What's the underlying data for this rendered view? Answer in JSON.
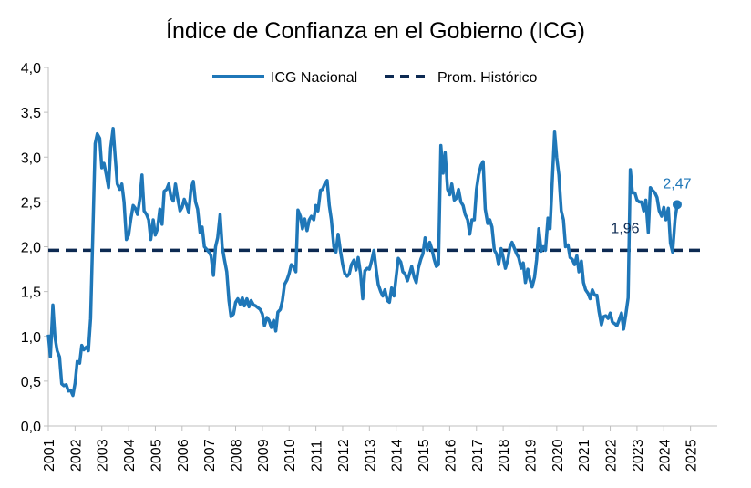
{
  "chart_data": {
    "type": "line",
    "title": "Índice de Confianza en el Gobierno (ICG)",
    "xlabel": "",
    "ylabel": "",
    "ylim": [
      0,
      4
    ],
    "yticks": [
      "0,0",
      "0,5",
      "1,0",
      "1,5",
      "2,0",
      "2,5",
      "3,0",
      "3,5",
      "4,0"
    ],
    "xlim": [
      2001,
      2026
    ],
    "xticks": [
      "2001",
      "2002",
      "2003",
      "2004",
      "2005",
      "2006",
      "2007",
      "2008",
      "2009",
      "2010",
      "2011",
      "2012",
      "2013",
      "2014",
      "2015",
      "2016",
      "2017",
      "2018",
      "2019",
      "2020",
      "2021",
      "2022",
      "2023",
      "2024",
      "2025"
    ],
    "grid": false,
    "legend_position": "top",
    "colors": {
      "icg": "#1f77b8",
      "avg": "#0d2a52",
      "label_last": "#1f77b8",
      "label_avg": "#0d2a52"
    },
    "series": [
      {
        "name": "ICG Nacional",
        "style": "solid",
        "points": [
          [
            2001.0,
            1.02
          ],
          [
            2001.08,
            0.77
          ],
          [
            2001.17,
            1.35
          ],
          [
            2001.25,
            0.99
          ],
          [
            2001.33,
            0.84
          ],
          [
            2001.42,
            0.77
          ],
          [
            2001.5,
            0.47
          ],
          [
            2001.58,
            0.45
          ],
          [
            2001.67,
            0.46
          ],
          [
            2001.75,
            0.39
          ],
          [
            2001.83,
            0.4
          ],
          [
            2001.92,
            0.34
          ],
          [
            2002.0,
            0.48
          ],
          [
            2002.08,
            0.72
          ],
          [
            2002.17,
            0.7
          ],
          [
            2002.25,
            0.9
          ],
          [
            2002.33,
            0.85
          ],
          [
            2002.42,
            0.88
          ],
          [
            2002.5,
            0.84
          ],
          [
            2002.58,
            1.2
          ],
          [
            2002.67,
            2.2
          ],
          [
            2002.75,
            3.15
          ],
          [
            2002.83,
            3.26
          ],
          [
            2002.92,
            3.21
          ],
          [
            2003.0,
            2.88
          ],
          [
            2003.08,
            2.93
          ],
          [
            2003.17,
            2.8
          ],
          [
            2003.25,
            2.66
          ],
          [
            2003.33,
            3.1
          ],
          [
            2003.42,
            3.32
          ],
          [
            2003.5,
            3.0
          ],
          [
            2003.58,
            2.7
          ],
          [
            2003.67,
            2.64
          ],
          [
            2003.75,
            2.7
          ],
          [
            2003.83,
            2.5
          ],
          [
            2003.92,
            2.08
          ],
          [
            2004.0,
            2.13
          ],
          [
            2004.08,
            2.3
          ],
          [
            2004.17,
            2.46
          ],
          [
            2004.25,
            2.43
          ],
          [
            2004.33,
            2.36
          ],
          [
            2004.42,
            2.53
          ],
          [
            2004.5,
            2.8
          ],
          [
            2004.58,
            2.4
          ],
          [
            2004.67,
            2.36
          ],
          [
            2004.75,
            2.3
          ],
          [
            2004.83,
            2.08
          ],
          [
            2004.92,
            2.3
          ],
          [
            2005.0,
            2.13
          ],
          [
            2005.08,
            2.2
          ],
          [
            2005.17,
            2.42
          ],
          [
            2005.25,
            2.25
          ],
          [
            2005.33,
            2.62
          ],
          [
            2005.42,
            2.64
          ],
          [
            2005.5,
            2.7
          ],
          [
            2005.58,
            2.56
          ],
          [
            2005.67,
            2.51
          ],
          [
            2005.75,
            2.7
          ],
          [
            2005.83,
            2.55
          ],
          [
            2005.92,
            2.4
          ],
          [
            2006.0,
            2.44
          ],
          [
            2006.08,
            2.53
          ],
          [
            2006.17,
            2.46
          ],
          [
            2006.25,
            2.38
          ],
          [
            2006.33,
            2.64
          ],
          [
            2006.42,
            2.73
          ],
          [
            2006.5,
            2.5
          ],
          [
            2006.58,
            2.42
          ],
          [
            2006.67,
            2.16
          ],
          [
            2006.75,
            2.22
          ],
          [
            2006.83,
            2.0
          ],
          [
            2006.92,
            1.97
          ],
          [
            2007.0,
            1.94
          ],
          [
            2007.08,
            1.9
          ],
          [
            2007.17,
            1.68
          ],
          [
            2007.25,
            2.0
          ],
          [
            2007.33,
            2.1
          ],
          [
            2007.42,
            2.36
          ],
          [
            2007.5,
            2.0
          ],
          [
            2007.58,
            1.86
          ],
          [
            2007.67,
            1.72
          ],
          [
            2007.75,
            1.4
          ],
          [
            2007.83,
            1.22
          ],
          [
            2007.92,
            1.25
          ],
          [
            2008.0,
            1.38
          ],
          [
            2008.08,
            1.42
          ],
          [
            2008.17,
            1.36
          ],
          [
            2008.25,
            1.43
          ],
          [
            2008.33,
            1.34
          ],
          [
            2008.42,
            1.42
          ],
          [
            2008.5,
            1.33
          ],
          [
            2008.58,
            1.4
          ],
          [
            2008.67,
            1.35
          ],
          [
            2008.75,
            1.34
          ],
          [
            2008.83,
            1.32
          ],
          [
            2008.92,
            1.3
          ],
          [
            2009.0,
            1.25
          ],
          [
            2009.08,
            1.12
          ],
          [
            2009.17,
            1.21
          ],
          [
            2009.25,
            1.18
          ],
          [
            2009.33,
            1.1
          ],
          [
            2009.42,
            1.18
          ],
          [
            2009.5,
            1.06
          ],
          [
            2009.58,
            1.27
          ],
          [
            2009.67,
            1.3
          ],
          [
            2009.75,
            1.4
          ],
          [
            2009.83,
            1.58
          ],
          [
            2009.92,
            1.63
          ],
          [
            2010.0,
            1.7
          ],
          [
            2010.08,
            1.8
          ],
          [
            2010.17,
            1.78
          ],
          [
            2010.25,
            1.72
          ],
          [
            2010.33,
            2.41
          ],
          [
            2010.42,
            2.34
          ],
          [
            2010.5,
            2.2
          ],
          [
            2010.58,
            2.31
          ],
          [
            2010.67,
            2.18
          ],
          [
            2010.75,
            2.3
          ],
          [
            2010.83,
            2.34
          ],
          [
            2010.92,
            2.3
          ],
          [
            2011.0,
            2.46
          ],
          [
            2011.08,
            2.4
          ],
          [
            2011.17,
            2.63
          ],
          [
            2011.25,
            2.64
          ],
          [
            2011.33,
            2.7
          ],
          [
            2011.42,
            2.74
          ],
          [
            2011.5,
            2.46
          ],
          [
            2011.58,
            2.3
          ],
          [
            2011.67,
            2.0
          ],
          [
            2011.75,
            1.94
          ],
          [
            2011.83,
            2.14
          ],
          [
            2011.92,
            1.95
          ],
          [
            2012.0,
            1.8
          ],
          [
            2012.08,
            1.7
          ],
          [
            2012.17,
            1.67
          ],
          [
            2012.25,
            1.7
          ],
          [
            2012.33,
            1.8
          ],
          [
            2012.42,
            1.85
          ],
          [
            2012.5,
            1.74
          ],
          [
            2012.58,
            1.88
          ],
          [
            2012.67,
            1.7
          ],
          [
            2012.75,
            1.42
          ],
          [
            2012.83,
            1.73
          ],
          [
            2012.92,
            1.76
          ],
          [
            2013.0,
            1.75
          ],
          [
            2013.08,
            1.84
          ],
          [
            2013.17,
            1.96
          ],
          [
            2013.25,
            1.75
          ],
          [
            2013.33,
            1.58
          ],
          [
            2013.42,
            1.5
          ],
          [
            2013.5,
            1.45
          ],
          [
            2013.58,
            1.52
          ],
          [
            2013.67,
            1.4
          ],
          [
            2013.75,
            1.38
          ],
          [
            2013.83,
            1.54
          ],
          [
            2013.92,
            1.45
          ],
          [
            2014.0,
            1.67
          ],
          [
            2014.08,
            1.87
          ],
          [
            2014.17,
            1.83
          ],
          [
            2014.25,
            1.72
          ],
          [
            2014.33,
            1.7
          ],
          [
            2014.42,
            1.62
          ],
          [
            2014.5,
            1.7
          ],
          [
            2014.58,
            1.78
          ],
          [
            2014.67,
            1.66
          ],
          [
            2014.75,
            1.6
          ],
          [
            2014.83,
            1.76
          ],
          [
            2014.92,
            1.86
          ],
          [
            2015.0,
            1.92
          ],
          [
            2015.08,
            2.1
          ],
          [
            2015.17,
            1.96
          ],
          [
            2015.25,
            2.05
          ],
          [
            2015.33,
            1.98
          ],
          [
            2015.42,
            1.86
          ],
          [
            2015.5,
            1.78
          ],
          [
            2015.58,
            1.8
          ],
          [
            2015.67,
            3.13
          ],
          [
            2015.75,
            2.82
          ],
          [
            2015.83,
            3.05
          ],
          [
            2015.92,
            2.64
          ],
          [
            2016.0,
            2.58
          ],
          [
            2016.08,
            2.7
          ],
          [
            2016.17,
            2.52
          ],
          [
            2016.25,
            2.54
          ],
          [
            2016.33,
            2.64
          ],
          [
            2016.42,
            2.5
          ],
          [
            2016.5,
            2.46
          ],
          [
            2016.58,
            2.36
          ],
          [
            2016.67,
            2.3
          ],
          [
            2016.75,
            2.14
          ],
          [
            2016.83,
            2.3
          ],
          [
            2016.92,
            2.3
          ],
          [
            2017.0,
            2.64
          ],
          [
            2017.08,
            2.8
          ],
          [
            2017.17,
            2.91
          ],
          [
            2017.25,
            2.95
          ],
          [
            2017.33,
            2.42
          ],
          [
            2017.42,
            2.26
          ],
          [
            2017.5,
            2.3
          ],
          [
            2017.58,
            2.22
          ],
          [
            2017.67,
            1.96
          ],
          [
            2017.75,
            1.92
          ],
          [
            2017.83,
            1.8
          ],
          [
            2017.92,
            1.98
          ],
          [
            2018.0,
            1.88
          ],
          [
            2018.08,
            1.76
          ],
          [
            2018.17,
            1.85
          ],
          [
            2018.25,
            2.0
          ],
          [
            2018.33,
            2.05
          ],
          [
            2018.42,
            1.98
          ],
          [
            2018.5,
            1.92
          ],
          [
            2018.58,
            1.88
          ],
          [
            2018.67,
            1.76
          ],
          [
            2018.75,
            1.82
          ],
          [
            2018.83,
            1.6
          ],
          [
            2018.92,
            1.75
          ],
          [
            2019.0,
            1.63
          ],
          [
            2019.08,
            1.55
          ],
          [
            2019.17,
            1.66
          ],
          [
            2019.25,
            1.86
          ],
          [
            2019.33,
            2.2
          ],
          [
            2019.42,
            1.95
          ],
          [
            2019.5,
            2.0
          ],
          [
            2019.58,
            1.96
          ],
          [
            2019.67,
            2.32
          ],
          [
            2019.75,
            2.2
          ],
          [
            2019.83,
            2.7
          ],
          [
            2019.92,
            3.28
          ],
          [
            2020.0,
            3.0
          ],
          [
            2020.08,
            2.8
          ],
          [
            2020.17,
            2.4
          ],
          [
            2020.25,
            2.3
          ],
          [
            2020.33,
            2.0
          ],
          [
            2020.42,
            2.02
          ],
          [
            2020.5,
            1.88
          ],
          [
            2020.58,
            1.86
          ],
          [
            2020.67,
            1.8
          ],
          [
            2020.75,
            1.9
          ],
          [
            2020.83,
            1.72
          ],
          [
            2020.92,
            1.84
          ],
          [
            2021.0,
            1.6
          ],
          [
            2021.08,
            1.52
          ],
          [
            2021.17,
            1.48
          ],
          [
            2021.25,
            1.42
          ],
          [
            2021.33,
            1.52
          ],
          [
            2021.42,
            1.46
          ],
          [
            2021.5,
            1.46
          ],
          [
            2021.58,
            1.28
          ],
          [
            2021.67,
            1.13
          ],
          [
            2021.75,
            1.22
          ],
          [
            2021.83,
            1.23
          ],
          [
            2021.92,
            1.2
          ],
          [
            2022.0,
            1.26
          ],
          [
            2022.08,
            1.16
          ],
          [
            2022.17,
            1.14
          ],
          [
            2022.25,
            1.12
          ],
          [
            2022.33,
            1.18
          ],
          [
            2022.42,
            1.26
          ],
          [
            2022.5,
            1.08
          ],
          [
            2022.58,
            1.24
          ],
          [
            2022.67,
            1.43
          ],
          [
            2022.75,
            2.86
          ],
          [
            2022.83,
            2.6
          ],
          [
            2022.92,
            2.6
          ],
          [
            2023.0,
            2.52
          ],
          [
            2023.08,
            2.5
          ],
          [
            2023.17,
            2.5
          ],
          [
            2023.25,
            2.4
          ],
          [
            2023.33,
            2.52
          ],
          [
            2023.42,
            2.16
          ],
          [
            2023.5,
            2.66
          ],
          [
            2023.58,
            2.63
          ],
          [
            2023.67,
            2.6
          ],
          [
            2023.75,
            2.55
          ],
          [
            2023.83,
            2.4
          ],
          [
            2023.92,
            2.34
          ],
          [
            2024.0,
            2.44
          ],
          [
            2024.08,
            2.3
          ],
          [
            2024.17,
            2.43
          ],
          [
            2024.25,
            2.04
          ],
          [
            2024.33,
            1.94
          ],
          [
            2024.42,
            2.3
          ],
          [
            2024.5,
            2.47
          ]
        ]
      },
      {
        "name": "Prom. Histórico",
        "style": "dashed",
        "value": 1.96
      }
    ],
    "annotations": [
      {
        "text": "1,96",
        "target": "avg"
      },
      {
        "text": "2,47",
        "target": "last"
      }
    ]
  }
}
